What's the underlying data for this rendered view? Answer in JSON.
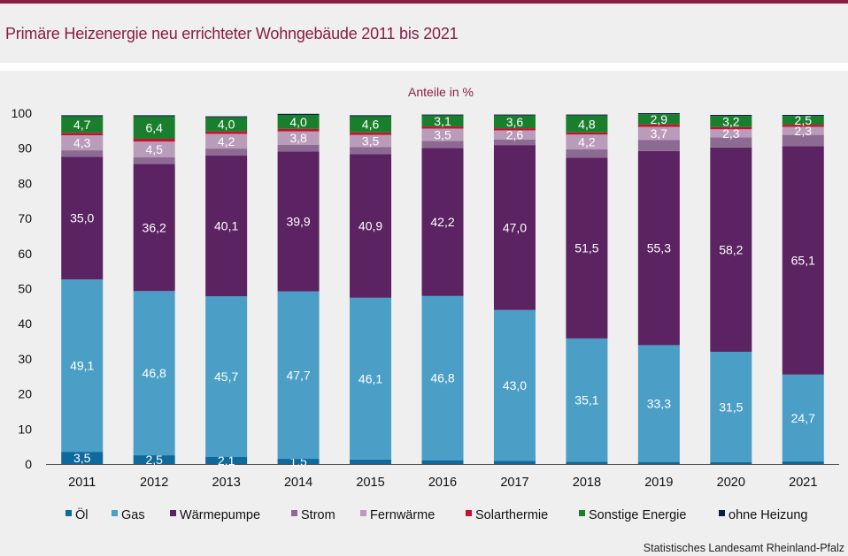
{
  "title": "Primäre Heizenergie neu errichteter Wohngebäude 2011 bis 2021",
  "source": "Statistisches Landesamt Rheinland-Pfalz",
  "colors": {
    "accent": "#8c1d40",
    "background": "#efefef"
  },
  "chart_data": {
    "type": "bar",
    "stacked": true,
    "title": "Primäre Heizenergie neu errichteter Wohngebäude 2011 bis 2021",
    "subtitle": "Anteile in %",
    "xlabel": "",
    "ylabel": "",
    "ylim": [
      0,
      100
    ],
    "yticks": [
      0,
      10,
      20,
      30,
      40,
      50,
      60,
      70,
      80,
      90,
      100
    ],
    "grid": false,
    "legend_position": "bottom",
    "categories": [
      "2011",
      "2012",
      "2013",
      "2014",
      "2015",
      "2016",
      "2017",
      "2018",
      "2019",
      "2020",
      "2021"
    ],
    "series": [
      {
        "name": "Öl",
        "color": "#0e6a9c",
        "values": [
          3.5,
          2.5,
          2.1,
          1.5,
          1.3,
          1.1,
          0.9,
          0.7,
          0.6,
          0.5,
          0.8
        ],
        "labels": [
          "3,5",
          "2,5",
          "2,1",
          "1,5",
          "",
          "",
          "",
          "",
          "",
          "",
          ""
        ]
      },
      {
        "name": "Gas",
        "color": "#4b9fc6",
        "values": [
          49.1,
          46.8,
          45.7,
          47.7,
          46.1,
          46.8,
          43.0,
          35.1,
          33.3,
          31.5,
          24.7
        ],
        "labels": [
          "49,1",
          "46,8",
          "45,7",
          "47,7",
          "46,1",
          "46,8",
          "43,0",
          "35,1",
          "33,3",
          "31,5",
          "24,7"
        ]
      },
      {
        "name": "Wärmepumpe",
        "color": "#5b2362",
        "values": [
          35.0,
          36.2,
          40.1,
          39.9,
          40.9,
          42.2,
          47.0,
          51.5,
          55.3,
          58.2,
          65.1
        ],
        "labels": [
          "35,0",
          "36,2",
          "40,1",
          "39,9",
          "40,9",
          "42,2",
          "47,0",
          "51,5",
          "55,3",
          "58,2",
          "65,1"
        ]
      },
      {
        "name": "Strom",
        "color": "#8d6a91",
        "values": [
          1.8,
          1.9,
          2.0,
          1.9,
          2.0,
          2.0,
          1.6,
          2.4,
          3.2,
          2.9,
          3.2
        ],
        "labels": [
          "",
          "",
          "",
          "",
          "",
          "",
          "",
          "",
          "",
          "",
          ""
        ]
      },
      {
        "name": "Fernwärme",
        "color": "#b99bba",
        "values": [
          4.3,
          4.5,
          4.2,
          3.8,
          3.5,
          3.5,
          2.6,
          4.2,
          3.7,
          2.3,
          2.3
        ],
        "labels": [
          "4,3",
          "4,5",
          "4,2",
          "3,8",
          "3,5",
          "3,5",
          "2,6",
          "4,2",
          "3,7",
          "2,3",
          "2,3"
        ]
      },
      {
        "name": "Solarthermie",
        "color": "#c8102e",
        "values": [
          0.7,
          0.8,
          0.7,
          0.7,
          0.7,
          0.6,
          0.6,
          0.6,
          0.7,
          0.6,
          0.6
        ],
        "labels": [
          "",
          "",
          "",
          "",
          "",
          "",
          "",
          "",
          "",
          "",
          ""
        ]
      },
      {
        "name": "Sonstige Energie",
        "color": "#1a7f2d",
        "values": [
          4.7,
          6.4,
          4.0,
          4.0,
          4.6,
          3.1,
          3.6,
          4.8,
          2.9,
          3.2,
          2.5
        ],
        "labels": [
          "4,7",
          "6,4",
          "4,0",
          "4,0",
          "4,6",
          "3,1",
          "3,6",
          "4,8",
          "2,9",
          "3,2",
          "2,5"
        ]
      },
      {
        "name": "ohne Heizung",
        "color": "#0a1f44",
        "values": [
          0.3,
          0.3,
          0.3,
          0.3,
          0.3,
          0.3,
          0.3,
          0.3,
          0.3,
          0.3,
          0.3
        ],
        "labels": [
          "",
          "",
          "",
          "",
          "",
          "",
          "",
          "",
          "",
          "",
          ""
        ]
      }
    ]
  }
}
